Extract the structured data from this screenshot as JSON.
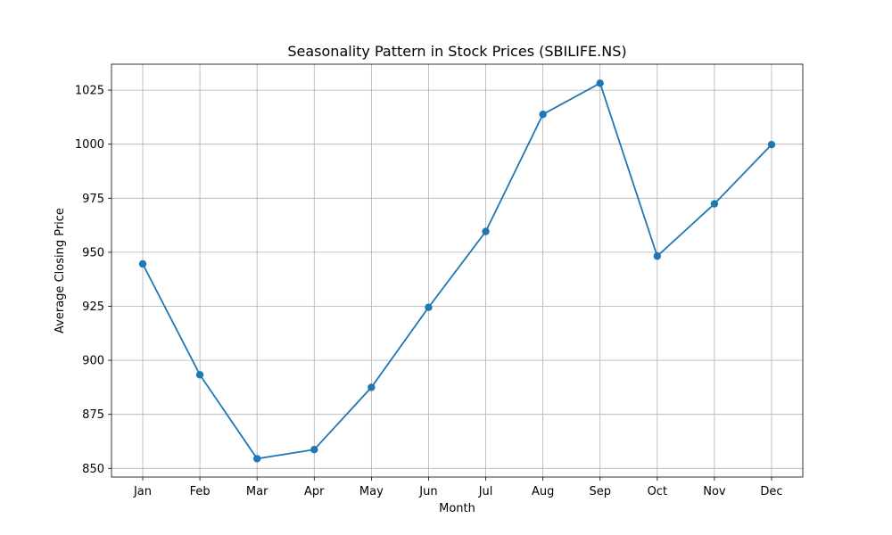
{
  "chart_data": {
    "type": "line",
    "title": "Seasonality Pattern in Stock Prices (SBILIFE.NS)",
    "xlabel": "Month",
    "ylabel": "Average Closing Price",
    "categories": [
      "Jan",
      "Feb",
      "Mar",
      "Apr",
      "May",
      "Jun",
      "Jul",
      "Aug",
      "Sep",
      "Oct",
      "Nov",
      "Dec"
    ],
    "series": [
      {
        "values": [
          944.6,
          893.3,
          854.5,
          858.7,
          887.5,
          924.5,
          959.6,
          1013.8,
          1028.2,
          948.2,
          972.4,
          999.8
        ],
        "color": "#1f77b4",
        "marker": "circle"
      }
    ],
    "yticks": [
      850,
      875,
      900,
      925,
      950,
      975,
      1000,
      1025
    ],
    "ylim": [
      846,
      1037
    ],
    "grid": true
  }
}
